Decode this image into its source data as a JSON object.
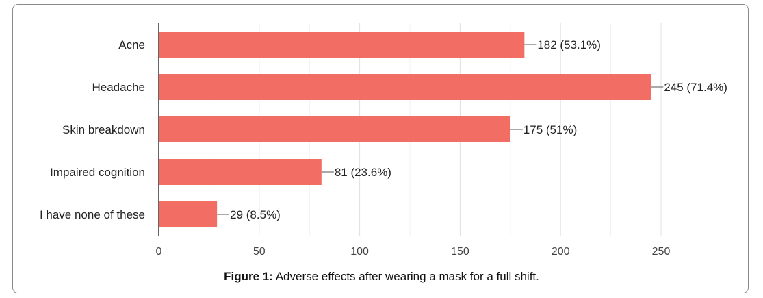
{
  "chart_data": {
    "type": "bar",
    "orientation": "horizontal",
    "categories": [
      "Acne",
      "Headache",
      "Skin breakdown",
      "Impaired cognition",
      "I have none of these"
    ],
    "values": [
      182,
      245,
      175,
      81,
      29
    ],
    "data_labels": [
      "182 (53.1%)",
      "245 (71.4%)",
      "175 (51%)",
      "81 (23.6%)",
      "29 (8.5%)"
    ],
    "xlim": [
      0,
      250
    ],
    "xticks": [
      0,
      50,
      100,
      150,
      200,
      250
    ],
    "grid": true,
    "bar_color": "#f26d63",
    "title": "",
    "xlabel": "",
    "ylabel": ""
  },
  "caption": {
    "prefix": "Figure 1:",
    "text": " Adverse effects after wearing a mask for a full shift."
  }
}
